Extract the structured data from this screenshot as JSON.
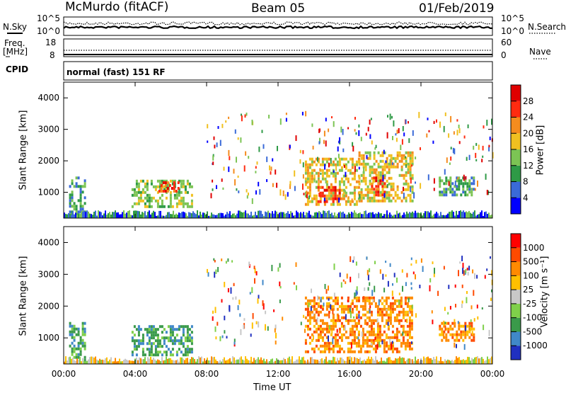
{
  "header": {
    "station": "McMurdo (fitACF)",
    "beam": "Beam 05",
    "date": "01/Feb/2019"
  },
  "noise_panel": {
    "left_label": "N.Sky",
    "right_label": "N.Search",
    "left_ticks": [
      "10^5",
      "10^0"
    ],
    "right_ticks": [
      "10^5",
      "10^0"
    ]
  },
  "freq_panel": {
    "left_label_1": "Freq.",
    "left_label_2": "[MHz]",
    "right_label": "Nave",
    "left_ticks": [
      "18",
      "8"
    ],
    "right_ticks": [
      "60",
      "0"
    ]
  },
  "cpid": {
    "label": "CPID",
    "value": "normal (fast) 151 RF"
  },
  "power_panel": {
    "ylabel": "Slant Range [km]",
    "yticks": [
      "4000",
      "3000",
      "2000",
      "1000"
    ],
    "colorbar_label": "Power [dB]",
    "colorbar_ticks": [
      "28",
      "24",
      "20",
      "16",
      "12",
      "8",
      "4"
    ],
    "colors": [
      "#0000ff",
      "#3a6ad8",
      "#2e9a46",
      "#7cc454",
      "#f0c020",
      "#f58c1e",
      "#ff2b10",
      "#e00000"
    ]
  },
  "velocity_panel": {
    "ylabel": "Slant Range [km]",
    "yticks": [
      "4000",
      "3000",
      "2000",
      "1000"
    ],
    "colorbar_label": "Velocity [m s⁻¹]",
    "colorbar_ticks": [
      "1000",
      "500",
      "100",
      "25",
      "-25",
      "-100",
      "-500",
      "-1000"
    ],
    "colors": [
      "#2030c0",
      "#4088c8",
      "#3a9a4a",
      "#7fd04a",
      "#c8c8c8",
      "#ffc000",
      "#ff8a00",
      "#ff4a00",
      "#ff0000"
    ]
  },
  "xaxis": {
    "ticks": [
      "00:00",
      "04:00",
      "08:00",
      "12:00",
      "16:00",
      "20:00",
      "00:00"
    ],
    "label": "Time UT"
  },
  "chart_data": {
    "type": "heatmap",
    "x_range_hours": [
      0,
      24
    ],
    "y_range_km": [
      180,
      4500
    ],
    "power_regions": [
      {
        "t0": 0.3,
        "t1": 1.2,
        "r0": 300,
        "r1": 1500,
        "level": 2
      },
      {
        "t0": 3.8,
        "t1": 7.2,
        "r0": 500,
        "r1": 1400,
        "level": 3
      },
      {
        "t0": 5.3,
        "t1": 6.6,
        "r0": 1050,
        "r1": 1350,
        "level": 6
      },
      {
        "t0": 13.5,
        "t1": 16.5,
        "r0": 600,
        "r1": 2100,
        "level": 4
      },
      {
        "t0": 14.2,
        "t1": 15.5,
        "r0": 700,
        "r1": 1200,
        "level": 6
      },
      {
        "t0": 16.5,
        "t1": 19.5,
        "r0": 700,
        "r1": 2300,
        "level": 4
      },
      {
        "t0": 17.2,
        "t1": 18.0,
        "r0": 900,
        "r1": 1500,
        "level": 6
      },
      {
        "t0": 21.0,
        "t1": 23.0,
        "r0": 900,
        "r1": 1500,
        "level": 2
      }
    ],
    "velocity_regions": [
      {
        "t0": 0.3,
        "t1": 1.2,
        "r0": 300,
        "r1": 1500,
        "level": 2
      },
      {
        "t0": 3.8,
        "t1": 7.2,
        "r0": 500,
        "r1": 1400,
        "level": 2
      },
      {
        "t0": 13.5,
        "t1": 19.5,
        "r0": 600,
        "r1": 2300,
        "level": 6
      },
      {
        "t0": 21.0,
        "t1": 23.0,
        "r0": 900,
        "r1": 1500,
        "level": 6
      }
    ]
  }
}
